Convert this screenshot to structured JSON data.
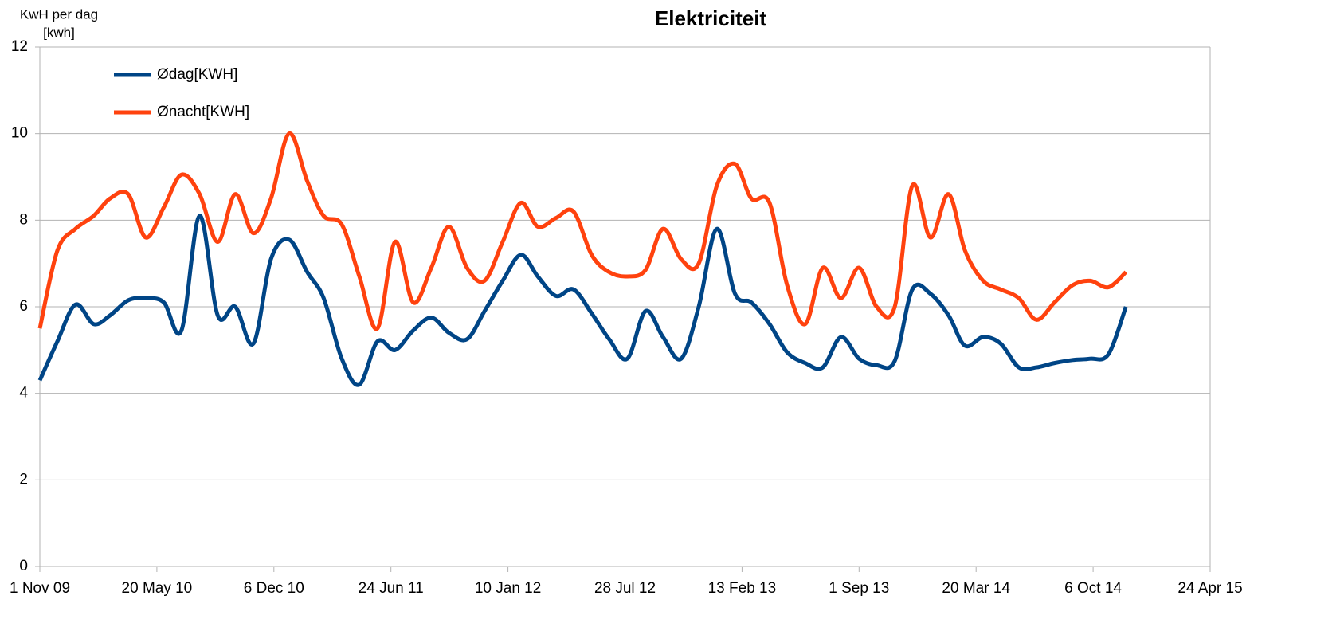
{
  "chart_data": {
    "type": "line",
    "title": "Elektriciteit",
    "y_label": [
      "KwH per dag",
      "[kwh]"
    ],
    "x": [
      "2009-11-01",
      "2009-12-01",
      "2010-01-01",
      "2010-02-01",
      "2010-03-01",
      "2010-04-01",
      "2010-05-01",
      "2010-06-01",
      "2010-07-01",
      "2010-08-01",
      "2010-09-01",
      "2010-10-01",
      "2010-11-01",
      "2010-12-01",
      "2011-01-01",
      "2011-02-01",
      "2011-03-01",
      "2011-04-01",
      "2011-05-01",
      "2011-06-01",
      "2011-07-01",
      "2011-08-01",
      "2011-09-01",
      "2011-10-01",
      "2011-11-01",
      "2011-12-01",
      "2012-01-01",
      "2012-02-01",
      "2012-03-01",
      "2012-04-01",
      "2012-05-01",
      "2012-06-01",
      "2012-07-01",
      "2012-08-01",
      "2012-09-01",
      "2012-10-01",
      "2012-11-01",
      "2012-12-01",
      "2013-01-01",
      "2013-02-01",
      "2013-03-01",
      "2013-04-01",
      "2013-05-01",
      "2013-06-01",
      "2013-07-01",
      "2013-08-01",
      "2013-09-01",
      "2013-10-01",
      "2013-11-01",
      "2013-12-01",
      "2014-01-01",
      "2014-02-01",
      "2014-03-01",
      "2014-04-01",
      "2014-05-01",
      "2014-06-01",
      "2014-07-01",
      "2014-08-01",
      "2014-09-01",
      "2014-10-01",
      "2014-11-01",
      "2014-12-01"
    ],
    "series": [
      {
        "name": "Ødag[KWH]",
        "color": "#004586",
        "values": [
          4.3,
          5.2,
          6.05,
          5.6,
          5.8,
          6.15,
          6.2,
          6.1,
          5.45,
          8.1,
          5.8,
          6.0,
          5.15,
          7.1,
          7.55,
          6.8,
          6.2,
          4.8,
          4.2,
          5.2,
          5.0,
          5.45,
          5.75,
          5.4,
          5.25,
          5.9,
          6.6,
          7.2,
          6.7,
          6.25,
          6.4,
          5.85,
          5.25,
          4.8,
          5.9,
          5.3,
          4.8,
          6.0,
          7.8,
          6.3,
          6.1,
          5.6,
          4.95,
          4.7,
          4.6,
          5.3,
          4.8,
          4.65,
          4.75,
          6.4,
          6.3,
          5.8,
          5.1,
          5.3,
          5.15,
          4.6,
          4.6,
          4.7,
          4.77,
          4.8,
          4.9,
          6.0
        ]
      },
      {
        "name": "Ønacht[KWH]",
        "color": "#ff420e",
        "values": [
          5.5,
          7.3,
          7.8,
          8.1,
          8.5,
          8.6,
          7.6,
          8.3,
          9.05,
          8.6,
          7.5,
          8.6,
          7.7,
          8.5,
          10.0,
          8.9,
          8.1,
          7.9,
          6.7,
          5.5,
          7.5,
          6.1,
          6.9,
          7.85,
          6.9,
          6.6,
          7.5,
          8.4,
          7.85,
          8.05,
          8.2,
          7.2,
          6.8,
          6.7,
          6.85,
          7.8,
          7.1,
          7.0,
          8.8,
          9.3,
          8.5,
          8.4,
          6.5,
          5.6,
          6.9,
          6.2,
          6.9,
          6.0,
          6.0,
          8.8,
          7.6,
          8.6,
          7.3,
          6.6,
          6.4,
          6.2,
          5.7,
          6.1,
          6.5,
          6.6,
          6.45,
          6.8
        ]
      }
    ],
    "xlim": [
      "2009-11-01",
      "2015-04-24"
    ],
    "xticks": [
      {
        "value": "2009-11-01",
        "label": "1 Nov 09"
      },
      {
        "value": "2010-05-20",
        "label": "20 May 10"
      },
      {
        "value": "2010-12-06",
        "label": "6 Dec 10"
      },
      {
        "value": "2011-06-24",
        "label": "24 Jun 11"
      },
      {
        "value": "2012-01-10",
        "label": "10 Jan 12"
      },
      {
        "value": "2012-07-28",
        "label": "28 Jul 12"
      },
      {
        "value": "2013-02-13",
        "label": "13 Feb 13"
      },
      {
        "value": "2013-09-01",
        "label": "1 Sep 13"
      },
      {
        "value": "2014-03-20",
        "label": "20 Mar 14"
      },
      {
        "value": "2014-10-06",
        "label": "6 Oct 14"
      },
      {
        "value": "2015-04-24",
        "label": "24 Apr 15"
      }
    ],
    "ylim": [
      0,
      12
    ],
    "yticks": [
      0,
      2,
      4,
      6,
      8,
      10,
      12
    ],
    "grid": true,
    "legend": "top-left"
  }
}
